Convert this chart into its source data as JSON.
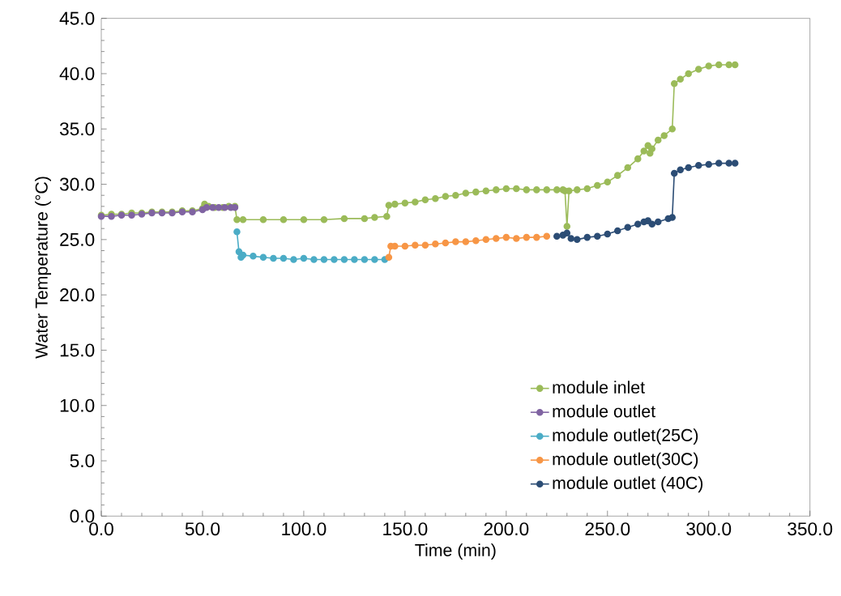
{
  "chart_data": {
    "type": "line",
    "xlabel": "Time (min)",
    "ylabel": "Water Temperature (°C)",
    "marker": "circle",
    "line_style": "solid",
    "grid": false,
    "legend": "bottom right",
    "xlim": [
      0,
      350
    ],
    "ylim": [
      0,
      45
    ],
    "xticks": [
      {
        "value": 0,
        "label": "0.0"
      },
      {
        "value": 50,
        "label": "50.0"
      },
      {
        "value": 100,
        "label": "100.0"
      },
      {
        "value": 150,
        "label": "150.0"
      },
      {
        "value": 200,
        "label": "200.0"
      },
      {
        "value": 250,
        "label": "250.0"
      },
      {
        "value": 300,
        "label": "300.0"
      },
      {
        "value": 350,
        "label": "350.0"
      }
    ],
    "yticks": [
      {
        "value": 0,
        "label": "0.0"
      },
      {
        "value": 5,
        "label": "5.0"
      },
      {
        "value": 10,
        "label": "10.0"
      },
      {
        "value": 15,
        "label": "15.0"
      },
      {
        "value": 20,
        "label": "20.0"
      },
      {
        "value": 25,
        "label": "25.0"
      },
      {
        "value": 30,
        "label": "30.0"
      },
      {
        "value": 35,
        "label": "35.0"
      },
      {
        "value": 40,
        "label": "40.0"
      },
      {
        "value": 45,
        "label": "45.0"
      }
    ],
    "series": [
      {
        "name": "module inlet",
        "color": "#9bbb59",
        "x": [
          0,
          5,
          10,
          15,
          20,
          25,
          30,
          35,
          40,
          45,
          50,
          51,
          53,
          56,
          60,
          63,
          66,
          67,
          70,
          80,
          90,
          100,
          110,
          120,
          130,
          135,
          141,
          142,
          145,
          150,
          155,
          160,
          165,
          170,
          175,
          180,
          185,
          190,
          195,
          200,
          205,
          210,
          215,
          220,
          225,
          228,
          229,
          230,
          231,
          235,
          240,
          245,
          250,
          255,
          260,
          265,
          268,
          270,
          271,
          272,
          275,
          278,
          282,
          283,
          286,
          290,
          295,
          300,
          305,
          310,
          313
        ],
        "values": [
          27.2,
          27.3,
          27.3,
          27.4,
          27.4,
          27.5,
          27.5,
          27.5,
          27.6,
          27.6,
          27.8,
          28.2,
          28.0,
          27.9,
          27.9,
          28.0,
          28.0,
          26.8,
          26.8,
          26.8,
          26.8,
          26.8,
          26.8,
          26.9,
          26.9,
          27.0,
          27.1,
          28.1,
          28.2,
          28.3,
          28.4,
          28.6,
          28.7,
          28.9,
          29.0,
          29.2,
          29.3,
          29.4,
          29.5,
          29.6,
          29.6,
          29.5,
          29.5,
          29.5,
          29.5,
          29.5,
          29.4,
          26.2,
          29.4,
          29.5,
          29.6,
          29.9,
          30.2,
          30.8,
          31.5,
          32.3,
          33.0,
          33.5,
          32.8,
          33.2,
          34.0,
          34.4,
          35.0,
          39.1,
          39.5,
          40.0,
          40.4,
          40.7,
          40.8,
          40.8,
          40.8
        ]
      },
      {
        "name": "module outlet",
        "color": "#8064a2",
        "x": [
          0,
          5,
          10,
          15,
          20,
          25,
          30,
          35,
          40,
          45,
          50,
          52,
          55,
          58,
          61,
          64,
          66
        ],
        "values": [
          27.1,
          27.1,
          27.2,
          27.2,
          27.3,
          27.4,
          27.4,
          27.4,
          27.5,
          27.5,
          27.7,
          27.9,
          27.9,
          27.9,
          27.9,
          27.9,
          27.9
        ]
      },
      {
        "name": "module outlet(25C)",
        "color": "#4bacc6",
        "x": [
          67,
          68,
          69,
          70,
          75,
          80,
          85,
          90,
          95,
          100,
          105,
          110,
          115,
          120,
          125,
          130,
          135,
          140
        ],
        "values": [
          25.7,
          23.9,
          23.4,
          23.6,
          23.5,
          23.4,
          23.3,
          23.3,
          23.2,
          23.3,
          23.2,
          23.2,
          23.2,
          23.2,
          23.2,
          23.2,
          23.2,
          23.2
        ]
      },
      {
        "name": "module outlet(30C)",
        "color": "#f79646",
        "x": [
          142,
          143,
          145,
          150,
          155,
          160,
          165,
          170,
          175,
          180,
          185,
          190,
          195,
          200,
          205,
          210,
          215,
          220
        ],
        "values": [
          23.4,
          24.4,
          24.4,
          24.4,
          24.5,
          24.5,
          24.6,
          24.7,
          24.8,
          24.8,
          24.9,
          25.0,
          25.1,
          25.2,
          25.1,
          25.2,
          25.2,
          25.3
        ]
      },
      {
        "name": "module outlet (40C)",
        "color": "#2c4d75",
        "x": [
          225,
          228,
          230,
          232,
          235,
          240,
          245,
          250,
          255,
          260,
          265,
          268,
          270,
          272,
          275,
          280,
          282,
          283,
          286,
          290,
          295,
          300,
          305,
          310,
          313
        ],
        "values": [
          25.3,
          25.4,
          25.6,
          25.1,
          25.0,
          25.2,
          25.3,
          25.5,
          25.8,
          26.1,
          26.4,
          26.6,
          26.7,
          26.4,
          26.6,
          26.9,
          27.0,
          31.0,
          31.3,
          31.5,
          31.7,
          31.8,
          31.9,
          31.9,
          31.9
        ]
      }
    ]
  }
}
